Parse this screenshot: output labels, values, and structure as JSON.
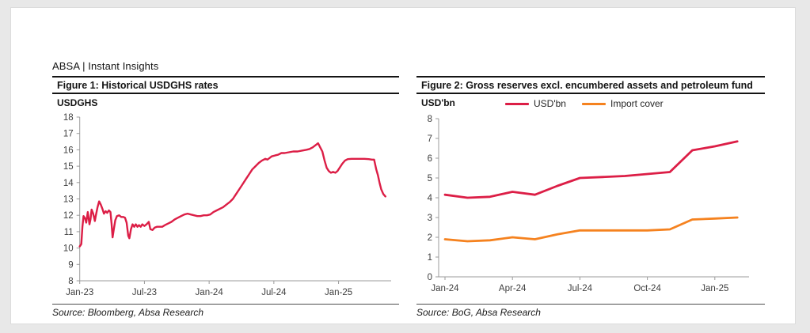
{
  "header": {
    "brand": "ABSA | Instant Insights"
  },
  "colors": {
    "crimson": "#dc1e46",
    "orange": "#f5821f",
    "axis_gray": "#9b9b9b",
    "rule_black": "#141414"
  },
  "figure1": {
    "title": "Figure 1: Historical USDGHS rates",
    "y_axis_title": "USDGHS",
    "source": "Source: Bloomberg, Absa Research"
  },
  "figure2": {
    "title": "Figure 2: Gross reserves excl. encumbered assets and petroleum fund",
    "y_axis_title": "USD'bn",
    "legend": [
      "USD'bn",
      "Import cover"
    ],
    "source": "Source: BoG, Absa Research"
  },
  "chart_data": [
    {
      "type": "line",
      "title": "Figure 1: Historical USDGHS rates",
      "xlabel": "",
      "ylabel": "USDGHS",
      "ylim": [
        8,
        18
      ],
      "y_tick_step": 1,
      "x_unit": "months since Jan-2023",
      "x_tick_positions": [
        0,
        6,
        12,
        18,
        24
      ],
      "x_tick_labels": [
        "Jan-23",
        "Jul-23",
        "Jan-24",
        "Jul-24",
        "Jan-25"
      ],
      "grid": false,
      "legend_position": "none",
      "source": "Source: Bloomberg, Absa Research",
      "series": [
        {
          "name": "USDGHS rate",
          "color": "#dc1e46",
          "points": [
            [
              0,
              10.1
            ],
            [
              0.1,
              10.2
            ],
            [
              0.15,
              10.25
            ],
            [
              0.25,
              11.3
            ],
            [
              0.35,
              11.95
            ],
            [
              0.5,
              11.8
            ],
            [
              0.6,
              11.55
            ],
            [
              0.75,
              12.2
            ],
            [
              0.9,
              11.45
            ],
            [
              1.0,
              11.75
            ],
            [
              1.1,
              12.35
            ],
            [
              1.25,
              12.1
            ],
            [
              1.4,
              11.65
            ],
            [
              1.5,
              12.0
            ],
            [
              1.65,
              12.5
            ],
            [
              1.8,
              12.85
            ],
            [
              1.95,
              12.65
            ],
            [
              2.1,
              12.4
            ],
            [
              2.25,
              12.1
            ],
            [
              2.4,
              12.25
            ],
            [
              2.55,
              12.15
            ],
            [
              2.7,
              12.3
            ],
            [
              2.85,
              12.2
            ],
            [
              2.95,
              11.5
            ],
            [
              3.05,
              10.65
            ],
            [
              3.15,
              11.1
            ],
            [
              3.3,
              11.7
            ],
            [
              3.45,
              11.95
            ],
            [
              3.65,
              12.0
            ],
            [
              3.85,
              11.9
            ],
            [
              4.05,
              11.9
            ],
            [
              4.2,
              11.85
            ],
            [
              4.35,
              11.55
            ],
            [
              4.5,
              10.75
            ],
            [
              4.6,
              10.6
            ],
            [
              4.75,
              11.15
            ],
            [
              4.9,
              11.45
            ],
            [
              5.05,
              11.3
            ],
            [
              5.2,
              11.45
            ],
            [
              5.35,
              11.3
            ],
            [
              5.5,
              11.4
            ],
            [
              5.65,
              11.3
            ],
            [
              5.8,
              11.45
            ],
            [
              6.0,
              11.35
            ],
            [
              6.2,
              11.45
            ],
            [
              6.4,
              11.6
            ],
            [
              6.55,
              11.15
            ],
            [
              6.75,
              11.1
            ],
            [
              6.95,
              11.25
            ],
            [
              7.15,
              11.3
            ],
            [
              7.4,
              11.3
            ],
            [
              7.65,
              11.3
            ],
            [
              7.9,
              11.4
            ],
            [
              8.2,
              11.5
            ],
            [
              8.5,
              11.6
            ],
            [
              8.8,
              11.75
            ],
            [
              9.1,
              11.85
            ],
            [
              9.4,
              11.95
            ],
            [
              9.7,
              12.05
            ],
            [
              10.0,
              12.1
            ],
            [
              10.3,
              12.05
            ],
            [
              10.6,
              12.0
            ],
            [
              10.9,
              11.95
            ],
            [
              11.2,
              11.95
            ],
            [
              11.5,
              12.0
            ],
            [
              11.8,
              12.0
            ],
            [
              12.1,
              12.05
            ],
            [
              12.4,
              12.2
            ],
            [
              12.7,
              12.3
            ],
            [
              13.0,
              12.4
            ],
            [
              13.3,
              12.5
            ],
            [
              13.6,
              12.65
            ],
            [
              13.9,
              12.8
            ],
            [
              14.2,
              13.0
            ],
            [
              14.5,
              13.3
            ],
            [
              14.8,
              13.6
            ],
            [
              15.1,
              13.9
            ],
            [
              15.4,
              14.2
            ],
            [
              15.7,
              14.5
            ],
            [
              16.0,
              14.8
            ],
            [
              16.3,
              15.0
            ],
            [
              16.6,
              15.2
            ],
            [
              16.9,
              15.35
            ],
            [
              17.2,
              15.45
            ],
            [
              17.4,
              15.4
            ],
            [
              17.6,
              15.5
            ],
            [
              17.8,
              15.6
            ],
            [
              18.1,
              15.65
            ],
            [
              18.4,
              15.7
            ],
            [
              18.7,
              15.8
            ],
            [
              19.0,
              15.8
            ],
            [
              19.4,
              15.85
            ],
            [
              19.8,
              15.9
            ],
            [
              20.2,
              15.9
            ],
            [
              20.6,
              15.95
            ],
            [
              21.0,
              16.0
            ],
            [
              21.3,
              16.05
            ],
            [
              21.6,
              16.15
            ],
            [
              21.9,
              16.3
            ],
            [
              22.1,
              16.4
            ],
            [
              22.3,
              16.15
            ],
            [
              22.5,
              15.9
            ],
            [
              22.7,
              15.35
            ],
            [
              22.9,
              14.9
            ],
            [
              23.1,
              14.7
            ],
            [
              23.3,
              14.6
            ],
            [
              23.5,
              14.65
            ],
            [
              23.7,
              14.6
            ],
            [
              23.9,
              14.7
            ],
            [
              24.1,
              14.9
            ],
            [
              24.35,
              15.15
            ],
            [
              24.6,
              15.35
            ],
            [
              24.85,
              15.43
            ],
            [
              25.2,
              15.45
            ],
            [
              25.6,
              15.45
            ],
            [
              26.0,
              15.45
            ],
            [
              26.4,
              15.45
            ],
            [
              26.8,
              15.43
            ],
            [
              27.1,
              15.4
            ],
            [
              27.3,
              15.4
            ],
            [
              27.5,
              14.8
            ],
            [
              27.65,
              14.45
            ],
            [
              27.8,
              14.0
            ],
            [
              27.95,
              13.6
            ],
            [
              28.15,
              13.3
            ],
            [
              28.35,
              13.15
            ]
          ]
        }
      ]
    },
    {
      "type": "line",
      "title": "Figure 2: Gross reserves excl. encumbered assets and petroleum fund",
      "xlabel": "",
      "ylabel": "USD'bn",
      "ylim": [
        0,
        8
      ],
      "y_tick_step": 1,
      "categories": [
        "Jan-24",
        "Feb-24",
        "Mar-24",
        "Apr-24",
        "May-24",
        "Jun-24",
        "Jul-24",
        "Aug-24",
        "Sep-24",
        "Oct-24",
        "Nov-24",
        "Dec-24",
        "Jan-25",
        "Feb-25"
      ],
      "x_tick_positions": [
        0,
        3,
        6,
        9,
        12
      ],
      "x_tick_labels": [
        "Jan-24",
        "Apr-24",
        "Jul-24",
        "Oct-24",
        "Jan-25"
      ],
      "grid": false,
      "legend_position": "top",
      "source": "Source: BoG, Absa Research",
      "series": [
        {
          "name": "USD'bn",
          "color": "#dc1e46",
          "values": [
            4.15,
            4.0,
            4.05,
            4.3,
            4.15,
            4.6,
            5.0,
            5.05,
            5.1,
            5.2,
            5.3,
            6.4,
            6.6,
            6.85
          ]
        },
        {
          "name": "Import cover",
          "color": "#f5821f",
          "values": [
            1.9,
            1.8,
            1.85,
            2.0,
            1.9,
            2.15,
            2.35,
            2.35,
            2.35,
            2.35,
            2.4,
            2.9,
            2.95,
            3.0
          ]
        }
      ]
    }
  ]
}
